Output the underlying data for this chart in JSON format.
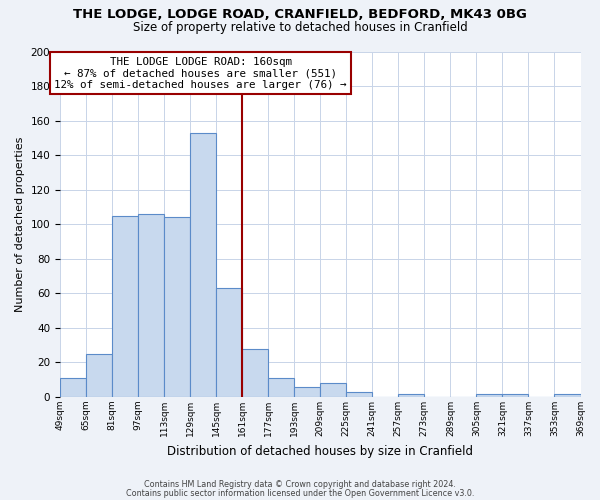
{
  "title1": "THE LODGE, LODGE ROAD, CRANFIELD, BEDFORD, MK43 0BG",
  "title2": "Size of property relative to detached houses in Cranfield",
  "xlabel": "Distribution of detached houses by size in Cranfield",
  "ylabel": "Number of detached properties",
  "footnote1": "Contains HM Land Registry data © Crown copyright and database right 2024.",
  "footnote2": "Contains public sector information licensed under the Open Government Licence v3.0.",
  "bin_labels": [
    "49sqm",
    "65sqm",
    "81sqm",
    "97sqm",
    "113sqm",
    "129sqm",
    "145sqm",
    "161sqm",
    "177sqm",
    "193sqm",
    "209sqm",
    "225sqm",
    "241sqm",
    "257sqm",
    "273sqm",
    "289sqm",
    "305sqm",
    "321sqm",
    "337sqm",
    "353sqm",
    "369sqm"
  ],
  "bar_values": [
    11,
    25,
    105,
    106,
    104,
    153,
    63,
    28,
    11,
    6,
    8,
    3,
    0,
    2,
    0,
    0,
    2,
    2,
    0,
    2
  ],
  "bin_edges": [
    49,
    65,
    81,
    97,
    113,
    129,
    145,
    161,
    177,
    193,
    209,
    225,
    241,
    257,
    273,
    289,
    305,
    321,
    337,
    353,
    369
  ],
  "bar_color": "#c8d9ee",
  "bar_edge_color": "#5b8bc9",
  "vline_x": 161,
  "vline_color": "#990000",
  "annotation_title": "THE LODGE LODGE ROAD: 160sqm",
  "annotation_line1": "← 87% of detached houses are smaller (551)",
  "annotation_line2": "12% of semi-detached houses are larger (76) →",
  "annotation_box_color": "#ffffff",
  "annotation_box_edge": "#990000",
  "ylim": [
    0,
    200
  ],
  "yticks": [
    0,
    20,
    40,
    60,
    80,
    100,
    120,
    140,
    160,
    180,
    200
  ],
  "grid_color": "#c8d4e8",
  "plot_bg": "#ffffff",
  "fig_bg": "#eef2f8"
}
